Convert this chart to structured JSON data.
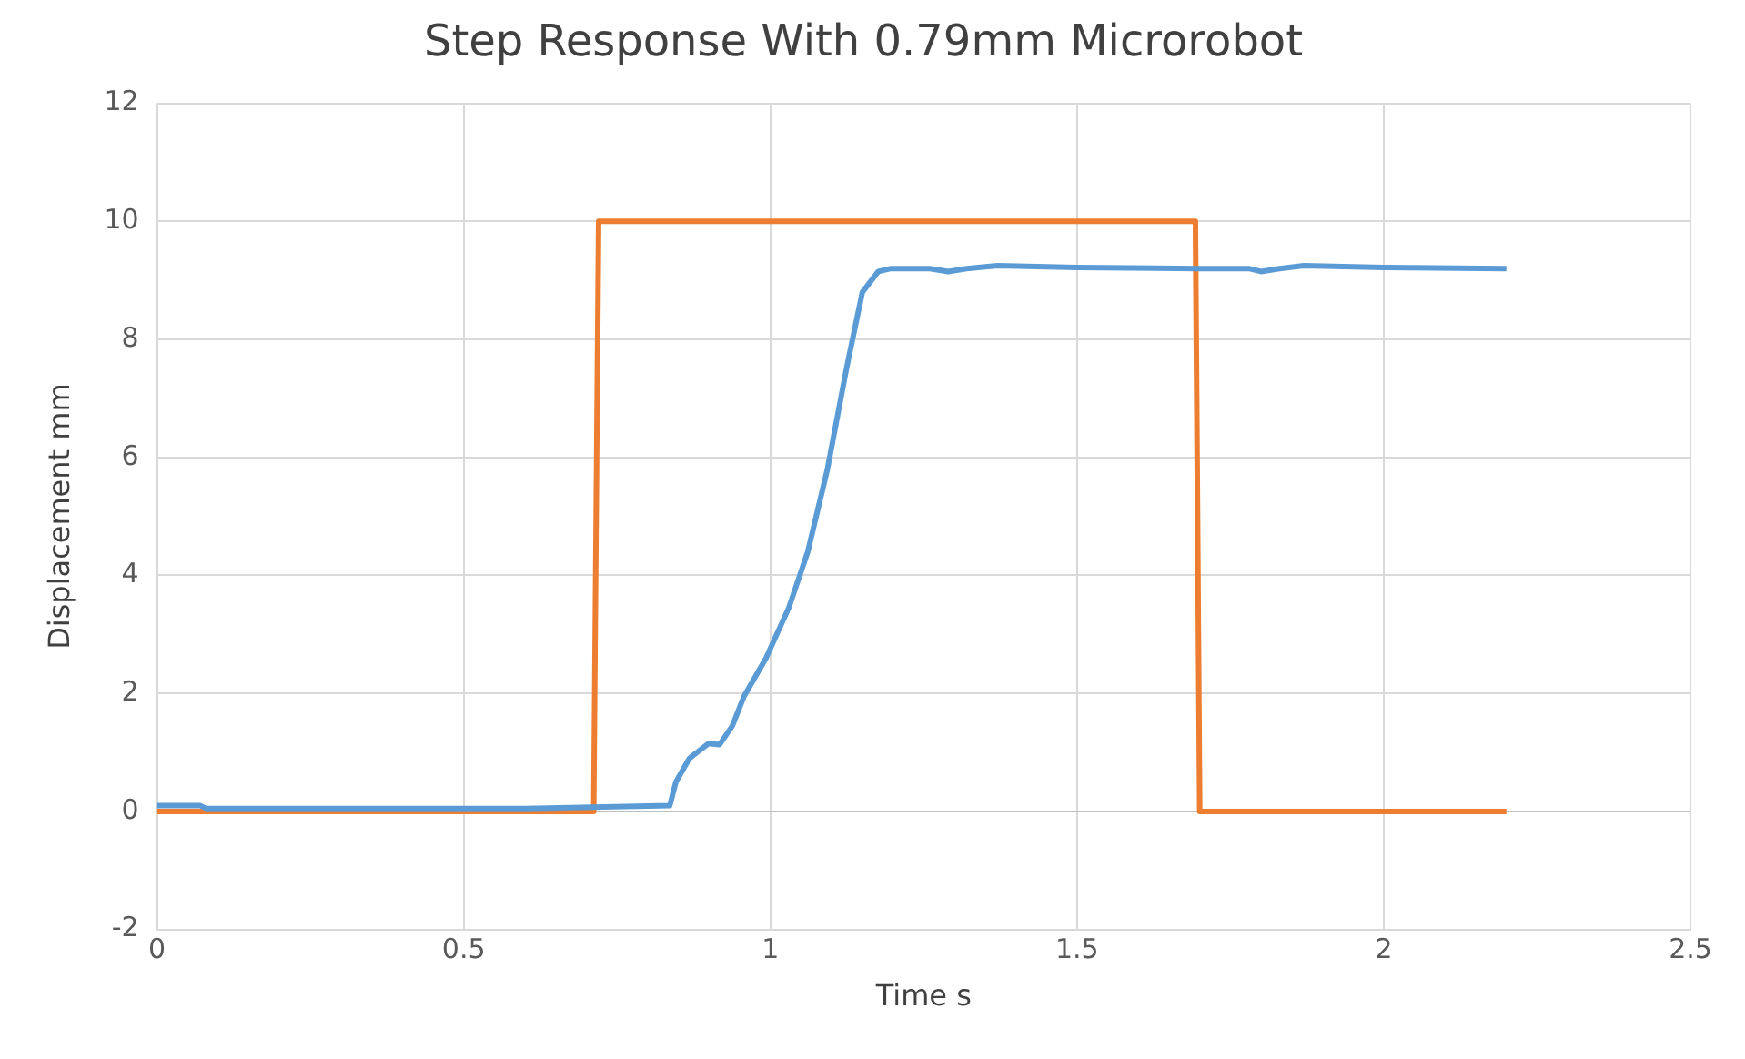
{
  "chart_data": {
    "type": "line",
    "title": "Step Response With 0.79mm Microrobot",
    "xlabel": "Time s",
    "ylabel": "Displacement mm",
    "xlim": [
      0,
      2.5
    ],
    "xticks": [
      0,
      0.5,
      1,
      1.5,
      2,
      2.5
    ],
    "ylim": [
      -2,
      12
    ],
    "yticks": [
      -2,
      0,
      2,
      4,
      6,
      8,
      10,
      12
    ],
    "grid": true,
    "legend": false,
    "marker": "none",
    "line_style": "solid",
    "series": [
      {
        "color": "#5b9bd5",
        "x": [
          0,
          0.07,
          0.08,
          0.3,
          0.6,
          0.836,
          0.846,
          0.868,
          0.899,
          0.917,
          0.938,
          0.957,
          0.993,
          1.03,
          1.061,
          1.093,
          1.124,
          1.15,
          1.176,
          1.197,
          1.26,
          1.29,
          1.32,
          1.37,
          1.5,
          1.7,
          1.78,
          1.8,
          1.83,
          1.87,
          2.0,
          2.2
        ],
        "values": [
          0.1,
          0.1,
          0.05,
          0.05,
          0.05,
          0.1,
          0.5,
          0.9,
          1.15,
          1.13,
          1.45,
          1.95,
          2.6,
          3.45,
          4.4,
          5.8,
          7.5,
          8.8,
          9.15,
          9.2,
          9.2,
          9.15,
          9.2,
          9.25,
          9.22,
          9.2,
          9.2,
          9.15,
          9.2,
          9.25,
          9.22,
          9.2
        ]
      },
      {
        "color": "#ed7d31",
        "x": [
          0,
          0.712,
          0.72,
          1.693,
          1.7,
          2.2
        ],
        "values": [
          0,
          0,
          10,
          10,
          0,
          0
        ]
      }
    ]
  }
}
